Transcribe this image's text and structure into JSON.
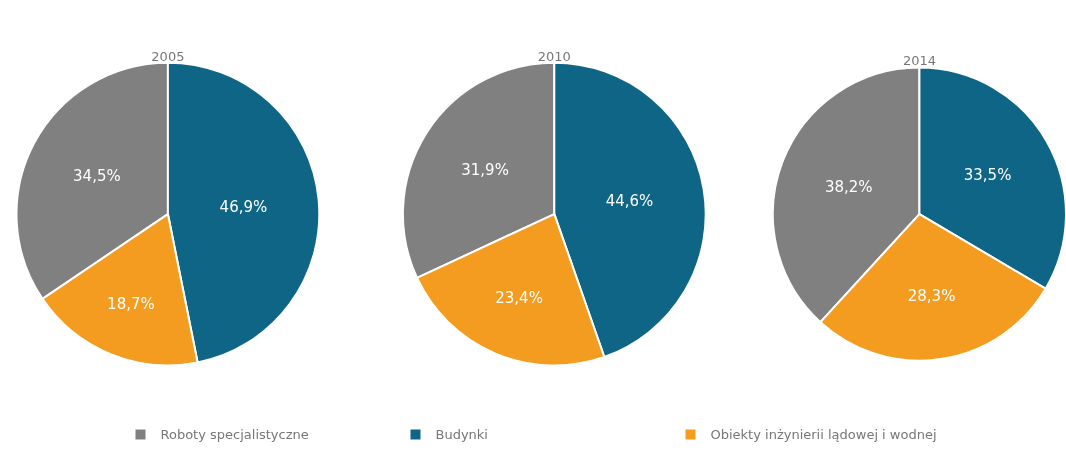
{
  "chart_data": [
    {
      "type": "pie",
      "title": "2005",
      "categories": [
        "Roboty specjalistyczne",
        "Budynki",
        "Obiekty inżynierii lądowej i wodnej"
      ],
      "values": [
        34.5,
        46.9,
        18.7
      ],
      "value_labels": [
        "34,5%",
        "46,9%",
        "18,7%"
      ],
      "colors": [
        "#808081",
        "#0f6585",
        "#f39c1f"
      ],
      "legend": "bottom"
    },
    {
      "type": "pie",
      "title": "2010",
      "categories": [
        null,
        null,
        null
      ],
      "values": [
        31.9,
        44.6,
        23.4
      ],
      "value_labels": [
        "31,9%",
        "44,6%",
        "23,4%"
      ],
      "colors": [
        "#808081",
        "#0f6585",
        "#f39c1f"
      ]
    },
    {
      "type": "pie",
      "title": "2014",
      "categories": [
        null,
        null,
        null
      ],
      "values": [
        38.2,
        33.5,
        28.3
      ],
      "value_labels": [
        "38,2%",
        "33,5%",
        "28,3%"
      ],
      "colors": [
        "#808081",
        "#0f6585",
        "#f39c1f"
      ]
    }
  ]
}
